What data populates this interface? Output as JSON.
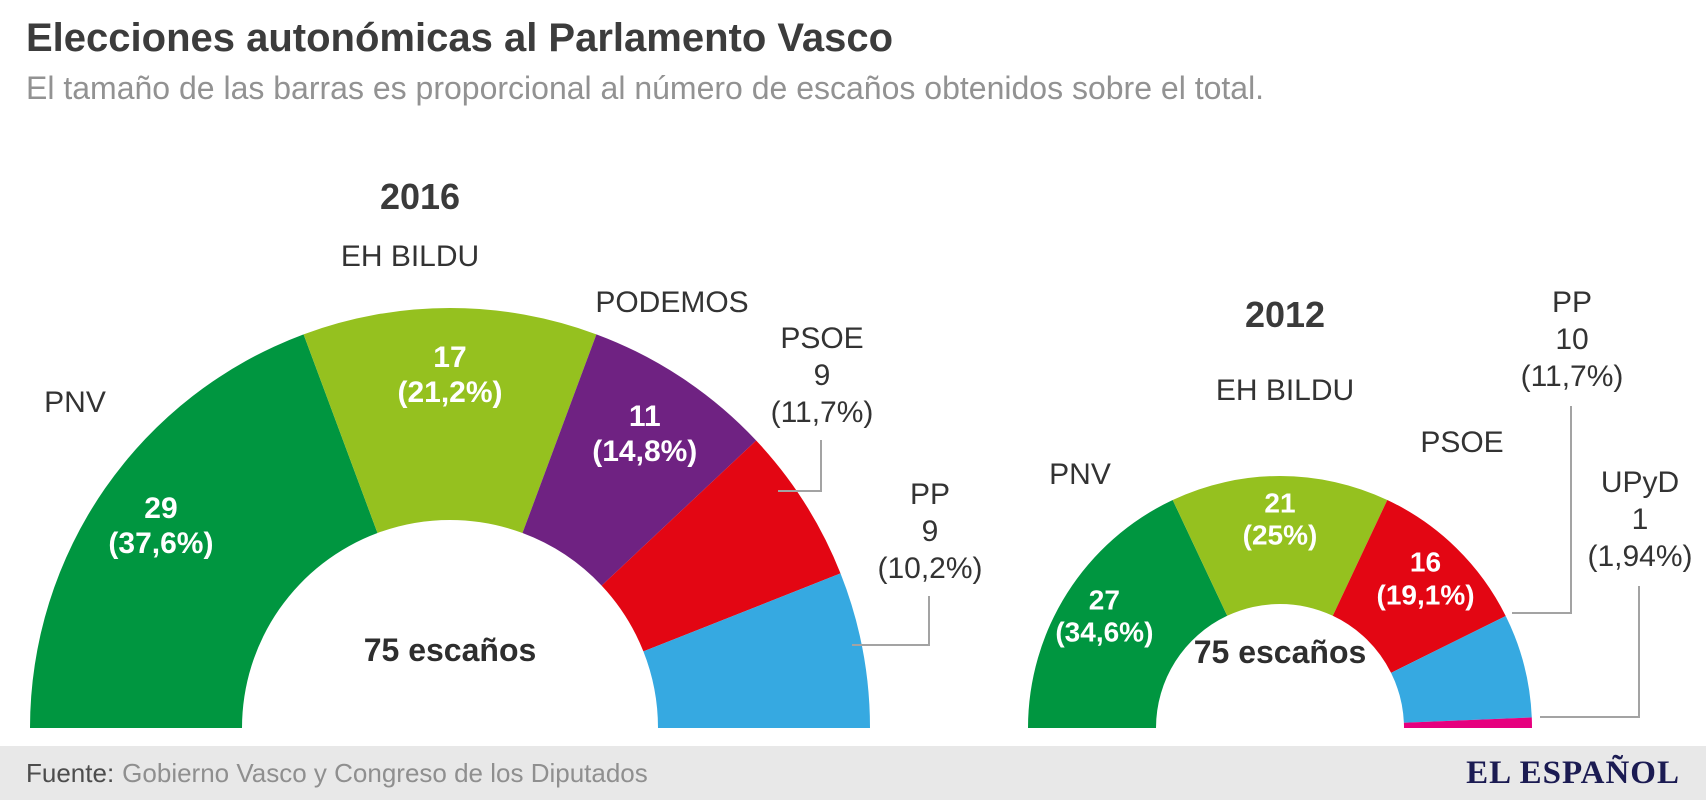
{
  "header": {
    "title": "Elecciones autonómicas al Parlamento Vasco",
    "subtitle": "El tamaño de las barras es proporcional al número de escaños obtenidos sobre el total."
  },
  "chart_data": [
    {
      "type": "half-donut",
      "year": "2016",
      "total_seats": 75,
      "total_label": "75 escaños",
      "segments": [
        {
          "party": "PNV",
          "seats": 29,
          "pct_label": "(37,6%)",
          "color": "#009640",
          "label_inside": true
        },
        {
          "party": "EH BILDU",
          "seats": 17,
          "pct_label": "(21,2%)",
          "color": "#95c11f",
          "label_inside": true
        },
        {
          "party": "PODEMOS",
          "seats": 11,
          "pct_label": "(14,8%)",
          "color": "#6f2282",
          "label_inside": true
        },
        {
          "party": "PSOE",
          "seats": 9,
          "pct_label": "(11,7%)",
          "color": "#e30613",
          "label_inside": false
        },
        {
          "party": "PP",
          "seats": 9,
          "pct_label": "(10,2%)",
          "color": "#36a9e1",
          "label_inside": false
        }
      ]
    },
    {
      "type": "half-donut",
      "year": "2012",
      "total_seats": 75,
      "total_label": "75 escaños",
      "segments": [
        {
          "party": "PNV",
          "seats": 27,
          "pct_label": "(34,6%)",
          "color": "#009640",
          "label_inside": true
        },
        {
          "party": "EH BILDU",
          "seats": 21,
          "pct_label": "(25%)",
          "color": "#95c11f",
          "label_inside": true
        },
        {
          "party": "PSOE",
          "seats": 16,
          "pct_label": "(19,1%)",
          "color": "#e30613",
          "label_inside": true
        },
        {
          "party": "PP",
          "seats": 10,
          "pct_label": "(11,7%)",
          "color": "#36a9e1",
          "label_inside": false
        },
        {
          "party": "UPyD",
          "seats": 1,
          "pct_label": "(1,94%)",
          "color": "#e6007e",
          "label_inside": false
        }
      ]
    }
  ],
  "footer": {
    "source_label": "Fuente:",
    "source_text": "Gobierno Vasco y Congreso de los Diputados",
    "brand": "EL ESPAÑOL"
  }
}
